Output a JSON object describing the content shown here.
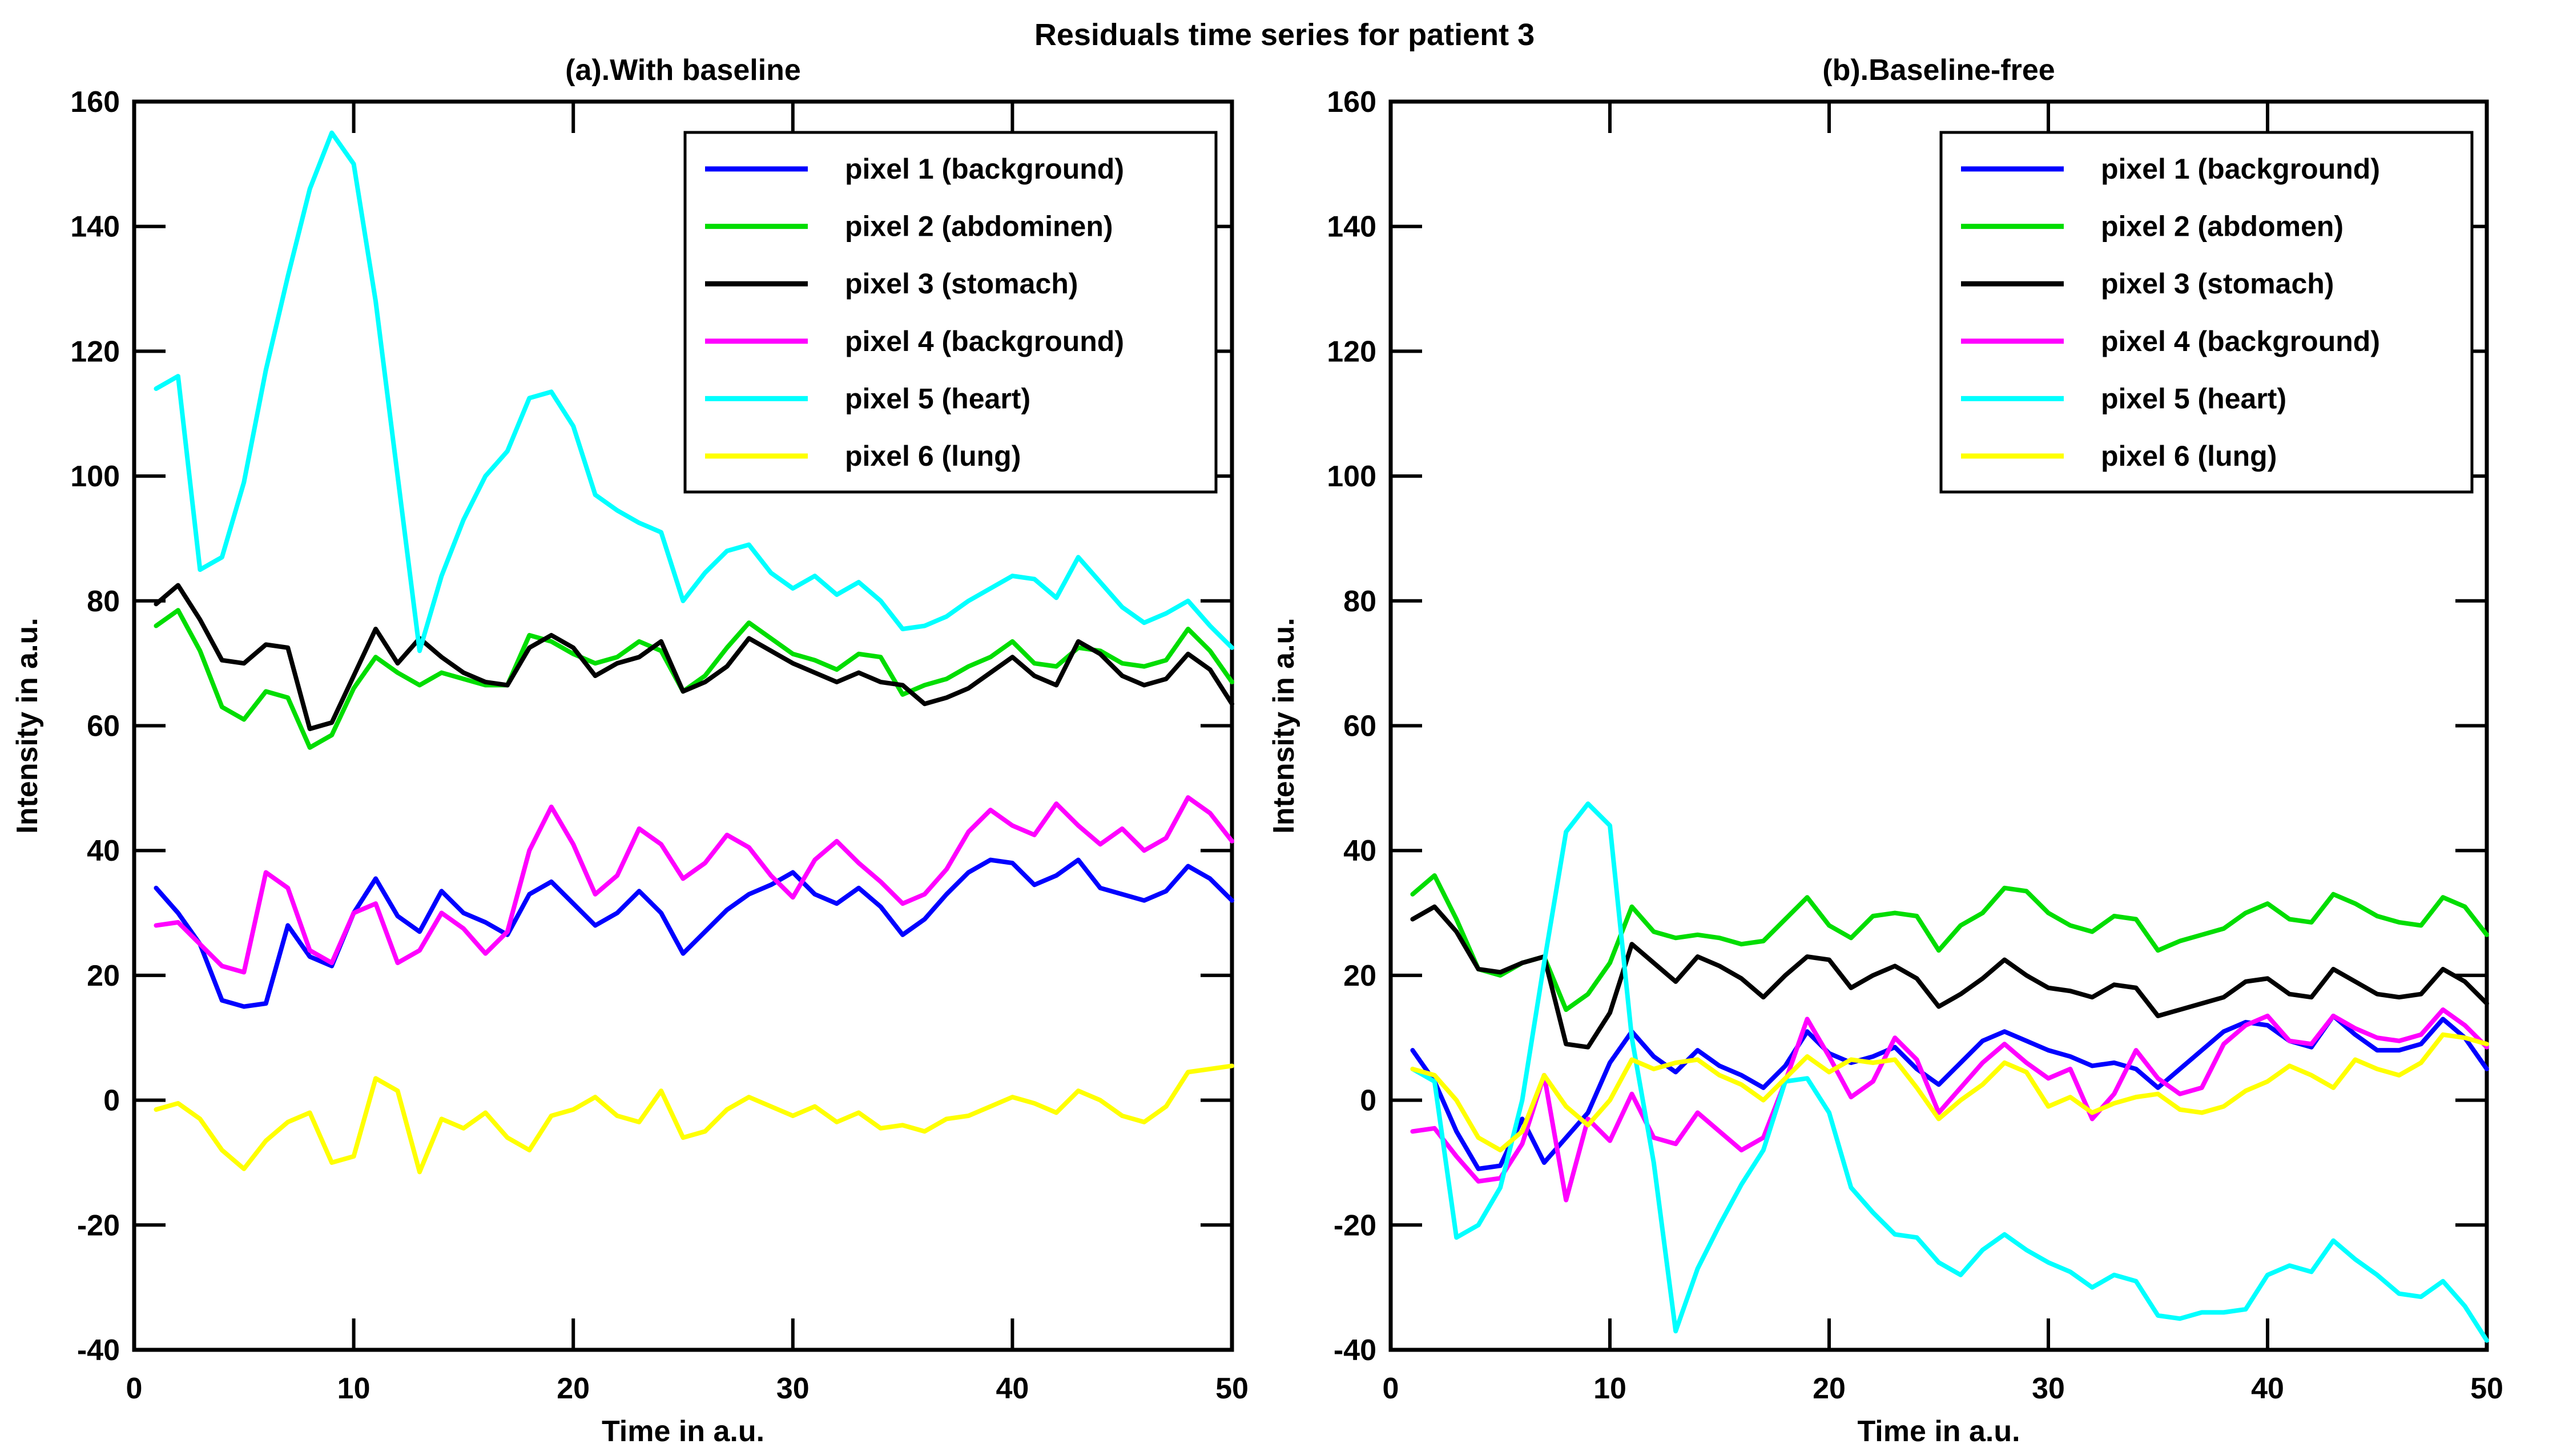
{
  "figure": {
    "title": "Residuals time series for patient 3",
    "background_color": "#ffffff",
    "text_color": "#000000"
  },
  "chart_data": [
    {
      "type": "line",
      "title": "(a).With baseline",
      "xlabel": "Time in a.u.",
      "ylabel": "Intensity in a.u.",
      "xlim": [
        0,
        50
      ],
      "ylim": [
        -40,
        160
      ],
      "xticks": [
        0,
        10,
        20,
        30,
        40,
        50
      ],
      "yticks": [
        -40,
        -20,
        0,
        20,
        40,
        60,
        80,
        100,
        120,
        140,
        160
      ],
      "grid": false,
      "legend_position": "upper-right-inside",
      "x": [
        1,
        2,
        3,
        4,
        5,
        6,
        7,
        8,
        9,
        10,
        11,
        12,
        13,
        14,
        15,
        16,
        17,
        18,
        19,
        20,
        21,
        22,
        23,
        24,
        25,
        26,
        27,
        28,
        29,
        30,
        31,
        32,
        33,
        34,
        35,
        36,
        37,
        38,
        39,
        40,
        41,
        42,
        43,
        44,
        45,
        46,
        47,
        48,
        49,
        50
      ],
      "series": [
        {
          "name": "pixel 1 (background)",
          "color": "#0000ff",
          "values": [
            34,
            30,
            25,
            16,
            15,
            15.5,
            28,
            23,
            21.5,
            30,
            35.5,
            29.5,
            27,
            33.5,
            30,
            28.5,
            26.5,
            33,
            35,
            31.5,
            28,
            30,
            33.5,
            30,
            23.5,
            27,
            30.5,
            33,
            34.5,
            36.5,
            33,
            31.5,
            34,
            31,
            26.5,
            29,
            33,
            36.5,
            38.5,
            38,
            34.5,
            36,
            38.5,
            34,
            33,
            32,
            33.5,
            37.5,
            35.5,
            32
          ]
        },
        {
          "name": "pixel 2 (abdominen)",
          "color": "#00dd00",
          "values": [
            76,
            78.5,
            72,
            63,
            61,
            65.5,
            64.5,
            56.5,
            58.5,
            66,
            71,
            68.5,
            66.5,
            68.5,
            67.5,
            66.5,
            66.5,
            74.5,
            73.5,
            71.5,
            70,
            71,
            73.5,
            72,
            65.5,
            68,
            72.5,
            76.5,
            74,
            71.5,
            70.5,
            69,
            71.5,
            71,
            65,
            66.5,
            67.5,
            69.5,
            71,
            73.5,
            70,
            69.5,
            72.5,
            72,
            70,
            69.5,
            70.5,
            75.5,
            72,
            67
          ]
        },
        {
          "name": "pixel 3 (stomach)",
          "color": "#000000",
          "values": [
            79.5,
            82.5,
            77,
            70.5,
            70,
            73,
            72.5,
            59.5,
            60.5,
            68,
            75.5,
            70,
            74,
            71,
            68.5,
            67,
            66.5,
            72.5,
            74.5,
            72.5,
            68,
            70,
            71,
            73.5,
            65.5,
            67,
            69.5,
            74,
            72,
            70,
            68.5,
            67,
            68.5,
            67,
            66.5,
            63.5,
            64.5,
            66,
            68.5,
            71,
            68,
            66.5,
            73.5,
            71.5,
            68,
            66.5,
            67.5,
            71.5,
            69,
            63.5
          ]
        },
        {
          "name": "pixel 4 (background)",
          "color": "#ff00ff",
          "values": [
            28,
            28.5,
            25,
            21.5,
            20.5,
            36.5,
            34,
            24,
            22,
            30,
            31.5,
            22,
            24,
            30,
            27.5,
            23.5,
            27,
            40,
            47,
            41,
            33,
            36,
            43.5,
            41,
            35.5,
            38,
            42.5,
            40.5,
            36,
            32.5,
            38.5,
            41.5,
            38,
            35,
            31.5,
            33,
            37,
            43,
            46.5,
            44,
            42.5,
            47.5,
            44,
            41,
            43.5,
            40,
            42,
            48.5,
            46,
            41.5
          ]
        },
        {
          "name": "pixel 5 (heart)",
          "color": "#00ffff",
          "values": [
            114,
            116,
            85,
            87,
            99,
            117,
            132,
            146,
            155,
            150,
            128,
            100,
            72,
            84,
            93,
            100,
            104,
            112.5,
            113.5,
            108,
            97,
            94.5,
            92.5,
            91,
            80,
            84.5,
            88,
            89,
            84.5,
            82,
            84,
            81,
            83,
            80,
            75.5,
            76,
            77.5,
            80,
            82,
            84,
            83.5,
            80.5,
            87,
            83,
            79,
            76.5,
            78,
            80,
            76,
            72.5
          ]
        },
        {
          "name": "pixel 6 (lung)",
          "color": "#ffff00",
          "values": [
            -1.5,
            -0.5,
            -3,
            -8,
            -11,
            -6.5,
            -3.5,
            -2,
            -10,
            -9,
            3.5,
            1.5,
            -11.5,
            -3,
            -4.5,
            -2,
            -6,
            -8,
            -2.5,
            -1.5,
            0.5,
            -2.5,
            -3.5,
            1.5,
            -6,
            -5,
            -1.5,
            0.5,
            -1,
            -2.5,
            -1,
            -3.5,
            -2,
            -4.5,
            -4,
            -5,
            -3,
            -2.5,
            -1,
            0.5,
            -0.5,
            -2,
            1.5,
            0,
            -2.5,
            -3.5,
            -1,
            4.5,
            5,
            5.5
          ]
        }
      ]
    },
    {
      "type": "line",
      "title": "(b).Baseline-free",
      "xlabel": "Time in a.u.",
      "ylabel": "Intensity in a.u.",
      "xlim": [
        0,
        50
      ],
      "ylim": [
        -40,
        160
      ],
      "xticks": [
        0,
        10,
        20,
        30,
        40,
        50
      ],
      "yticks": [
        -40,
        -20,
        0,
        20,
        40,
        60,
        80,
        100,
        120,
        140,
        160
      ],
      "grid": false,
      "legend_position": "upper-right-inside",
      "x": [
        1,
        2,
        3,
        4,
        5,
        6,
        7,
        8,
        9,
        10,
        11,
        12,
        13,
        14,
        15,
        16,
        17,
        18,
        19,
        20,
        21,
        22,
        23,
        24,
        25,
        26,
        27,
        28,
        29,
        30,
        31,
        32,
        33,
        34,
        35,
        36,
        37,
        38,
        39,
        40,
        41,
        42,
        43,
        44,
        45,
        46,
        47,
        48,
        49,
        50
      ],
      "series": [
        {
          "name": "pixel 1 (background)",
          "color": "#0000ff",
          "values": [
            8,
            3,
            -5,
            -11,
            -10.5,
            -3,
            -10,
            -6,
            -2,
            6,
            11,
            7,
            4.5,
            8,
            5.5,
            4,
            2,
            5.5,
            11,
            7.5,
            6,
            7,
            8.5,
            5,
            2.5,
            6,
            9.5,
            11,
            9.5,
            8,
            7,
            5.5,
            6,
            5,
            2,
            5,
            8,
            11,
            12.5,
            12,
            9.5,
            8.5,
            13.5,
            10.5,
            8,
            8,
            9,
            13,
            10,
            5
          ]
        },
        {
          "name": "pixel 2 (abdomen)",
          "color": "#00dd00",
          "values": [
            33,
            36,
            29,
            21,
            20,
            22,
            23,
            14.5,
            17,
            22,
            31,
            27,
            26,
            26.5,
            26,
            25,
            25.5,
            29,
            32.5,
            28,
            26,
            29.5,
            30,
            29.5,
            24,
            28,
            30,
            34,
            33.5,
            30,
            28,
            27,
            29.5,
            29,
            24,
            25.5,
            26.5,
            27.5,
            30,
            31.5,
            29,
            28.5,
            33,
            31.5,
            29.5,
            28.5,
            28,
            32.5,
            31,
            26.5
          ]
        },
        {
          "name": "pixel 3 (stomach)",
          "color": "#000000",
          "values": [
            29,
            31,
            27,
            21,
            20.5,
            22,
            23,
            9,
            8.5,
            14,
            25,
            22,
            19,
            23,
            21.5,
            19.5,
            16.5,
            20,
            23,
            22.5,
            18,
            20,
            21.5,
            19.5,
            15,
            17,
            19.5,
            22.5,
            20,
            18,
            17.5,
            16.5,
            18.5,
            18,
            13.5,
            14.5,
            15.5,
            16.5,
            19,
            19.5,
            17,
            16.5,
            21,
            19,
            17,
            16.5,
            17,
            21,
            19,
            15.5
          ]
        },
        {
          "name": "pixel 4 (background)",
          "color": "#ff00ff",
          "values": [
            -5,
            -4.5,
            -9,
            -13,
            -12.5,
            -7,
            4,
            -16,
            -3,
            -6.5,
            1,
            -6,
            -7,
            -2,
            -5,
            -8,
            -6,
            3,
            13,
            7,
            0.5,
            3,
            10,
            6.5,
            -2,
            2,
            6,
            9,
            6,
            3.5,
            5,
            -3,
            1,
            8,
            3.5,
            1,
            2,
            9,
            12,
            13.5,
            9.5,
            9,
            13.5,
            11.5,
            10,
            9.5,
            10.5,
            14.5,
            12,
            8.5
          ]
        },
        {
          "name": "pixel 5 (heart)",
          "color": "#00ffff",
          "values": [
            5,
            3,
            -22,
            -20,
            -14,
            0,
            22,
            43,
            47.5,
            44,
            10,
            -10,
            -37,
            -27,
            -20,
            -13.5,
            -8,
            3,
            3.5,
            -2,
            -14,
            -18,
            -21.5,
            -22,
            -26,
            -28,
            -24,
            -21.5,
            -24,
            -26,
            -27.5,
            -30,
            -28,
            -29,
            -34.5,
            -35,
            -34,
            -34,
            -33.5,
            -28,
            -26.5,
            -27.5,
            -22.5,
            -25.5,
            -28,
            -31,
            -31.5,
            -29,
            -33,
            -38.5
          ]
        },
        {
          "name": "pixel 6 (lung)",
          "color": "#ffff00",
          "values": [
            5,
            4,
            0,
            -6,
            -8,
            -5,
            4,
            -1,
            -4,
            0,
            6.5,
            5,
            6,
            6.5,
            4,
            2.5,
            0,
            3.5,
            7,
            4.5,
            6.5,
            6,
            6.5,
            2,
            -3,
            0,
            2.5,
            6,
            4.5,
            -1,
            0.5,
            -2,
            -0.5,
            0.5,
            1,
            -1.5,
            -2,
            -1,
            1.5,
            3,
            5.5,
            4,
            2,
            6.5,
            5,
            4,
            6,
            10.5,
            10,
            9
          ]
        }
      ]
    }
  ]
}
